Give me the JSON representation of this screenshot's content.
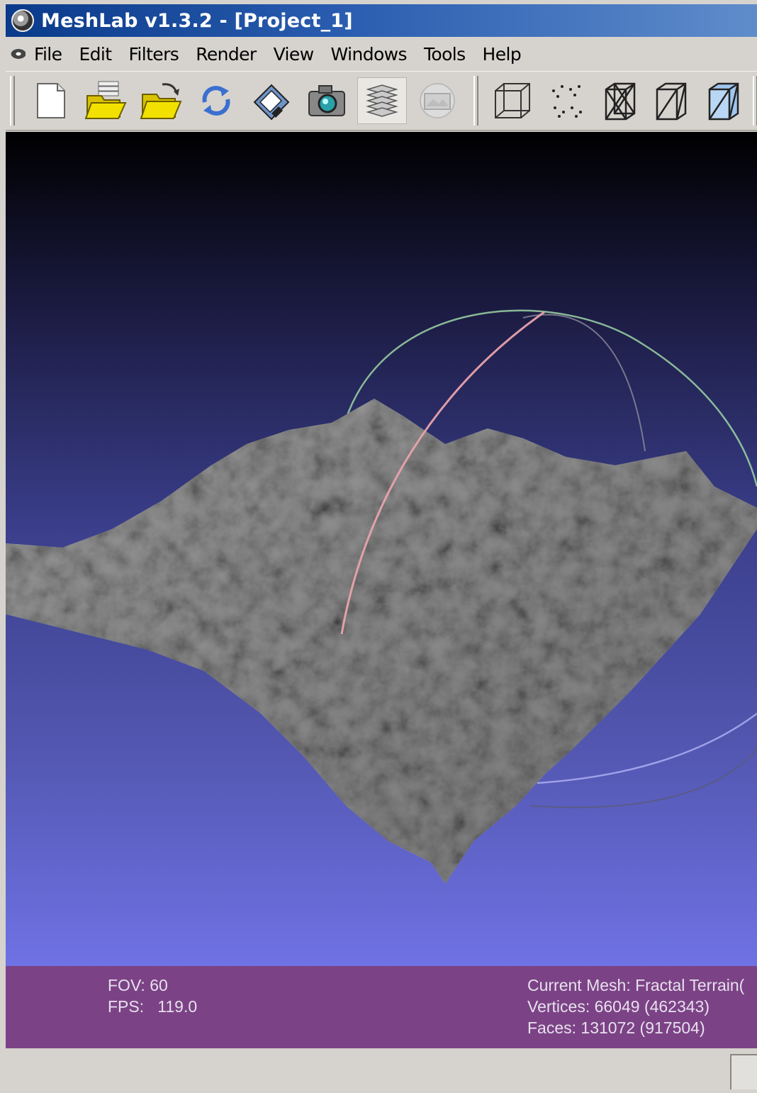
{
  "titlebar": {
    "title": "MeshLab v1.3.2 - [Project_1]",
    "icon": "meshlab-eye-icon"
  },
  "menu": {
    "items": [
      "File",
      "Edit",
      "Filters",
      "Render",
      "View",
      "Windows",
      "Tools",
      "Help"
    ]
  },
  "toolbar": {
    "tools": [
      {
        "name": "new-project-icon",
        "state": "normal"
      },
      {
        "name": "open-project-icon",
        "state": "normal"
      },
      {
        "name": "import-mesh-icon",
        "state": "normal"
      },
      {
        "name": "reload-icon",
        "state": "normal"
      },
      {
        "name": "save-icon",
        "state": "normal"
      },
      {
        "name": "snapshot-camera-icon",
        "state": "normal"
      },
      {
        "name": "layers-icon",
        "state": "pressed"
      },
      {
        "name": "raster-layer-icon",
        "state": "disabled"
      },
      {
        "name": "bounding-box-icon",
        "state": "normal"
      },
      {
        "name": "points-icon",
        "state": "normal"
      },
      {
        "name": "wireframe-icon",
        "state": "normal"
      },
      {
        "name": "hidden-lines-icon",
        "state": "normal"
      },
      {
        "name": "flat-lines-icon",
        "state": "normal"
      }
    ]
  },
  "viewport": {
    "trackball_colors": {
      "red": "#e9a3ab",
      "green": "#9cd3a5",
      "blue": "#a9a9ee"
    },
    "mesh_color": "#8f8f8f"
  },
  "info": {
    "fov": "FOV: 60",
    "fps": "FPS:   119.0",
    "current_mesh": "Current Mesh: Fractal Terrain(",
    "vertices": "Vertices: 66049 (462343)",
    "faces": "Faces: 131072 (917504)"
  }
}
